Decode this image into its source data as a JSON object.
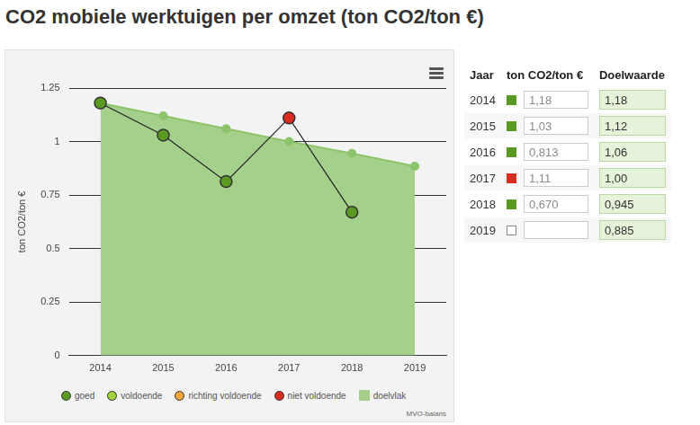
{
  "chart_data": {
    "type": "line",
    "title": "CO2 mobiele werktuigen per omzet (ton CO2/ton €)",
    "y_label": "ton CO2/ton €",
    "categories": [
      "2014",
      "2015",
      "2016",
      "2017",
      "2018",
      "2019"
    ],
    "series": [
      {
        "name": "doelvlak",
        "type": "area",
        "color": "#a5d08c",
        "marker": "circle",
        "values": [
          1.18,
          1.12,
          1.06,
          1.0,
          0.945,
          0.885
        ]
      },
      {
        "type": "line",
        "color": "#222222",
        "marker": "circle",
        "colors": [
          "#5a9a22",
          "#5a9a22",
          "#5a9a22",
          "#d92b1f",
          "#5a9a22",
          null
        ],
        "values": [
          1.18,
          1.03,
          0.813,
          1.11,
          0.67,
          null
        ]
      }
    ],
    "ylim": [
      0,
      1.25
    ],
    "yticks": [
      0,
      0.25,
      0.5,
      0.75,
      1,
      1.25
    ],
    "grid": true,
    "legend": "bottom",
    "statuses": [
      {
        "name": "goed",
        "color": "#5a9a22"
      },
      {
        "name": "voldoende",
        "color": "#a3d13f"
      },
      {
        "name": "richting voldoende",
        "color": "#f5a43a"
      },
      {
        "name": "niet voldoende",
        "color": "#d92b1f"
      }
    ],
    "source": "MVO-balans"
  },
  "table": {
    "columns": [
      "Jaar",
      "ton CO2/ton €",
      "Doelwaarde"
    ],
    "rows": [
      {
        "year": "2014",
        "status": "goed",
        "value": "1,18",
        "target": "1,18"
      },
      {
        "year": "2015",
        "status": "goed",
        "value": "1,03",
        "target": "1,12"
      },
      {
        "year": "2016",
        "status": "goed",
        "value": "0,813",
        "target": "1,06"
      },
      {
        "year": "2017",
        "status": "niet voldoende",
        "value": "1,11",
        "target": "1,00"
      },
      {
        "year": "2018",
        "status": "goed",
        "value": "0,670",
        "target": "0,945"
      },
      {
        "year": "2019",
        "status": null,
        "value": null,
        "target": "0,885"
      }
    ]
  }
}
